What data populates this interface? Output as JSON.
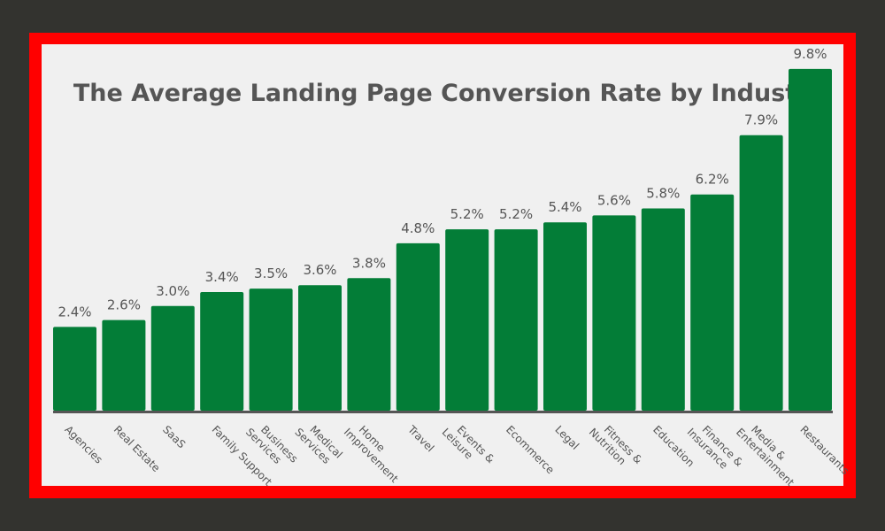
{
  "chart_data": {
    "type": "bar",
    "title": "The Average Landing Page Conversion Rate by Industry",
    "categories": [
      [
        "Agencies"
      ],
      [
        "Real Estate"
      ],
      [
        "SaaS"
      ],
      [
        "Family Support"
      ],
      [
        "Business",
        "Services"
      ],
      [
        "Medical",
        "Services"
      ],
      [
        "Home",
        "Improvement"
      ],
      [
        "Travel"
      ],
      [
        "Events &",
        "Leisure"
      ],
      [
        "Ecommerce"
      ],
      [
        "Legal"
      ],
      [
        "Fitness &",
        "Nutrition"
      ],
      [
        "Education"
      ],
      [
        "Finance &",
        "Insurance"
      ],
      [
        "Media &",
        "Entertainment"
      ],
      [
        "Restaurants"
      ]
    ],
    "values": [
      2.4,
      2.6,
      3.0,
      3.4,
      3.5,
      3.6,
      3.8,
      4.8,
      5.2,
      5.2,
      5.4,
      5.6,
      5.8,
      6.2,
      7.9,
      9.8
    ],
    "value_labels": [
      "2.4%",
      "2.6%",
      "3.0%",
      "3.4%",
      "3.5%",
      "3.6%",
      "3.8%",
      "4.8%",
      "5.2%",
      "5.2%",
      "5.4%",
      "5.6%",
      "5.8%",
      "6.2%",
      "7.9%",
      "9.8%"
    ],
    "xlabel": "",
    "ylabel": "",
    "ylim": [
      0,
      10
    ],
    "grid": false,
    "legend": "none",
    "colors": {
      "bar": "#037d37",
      "axis": "#555555",
      "text": "#555555",
      "title": "#555555",
      "border": "#ff0000",
      "panel": "#f0f0f0",
      "outer": "#33332f"
    }
  }
}
